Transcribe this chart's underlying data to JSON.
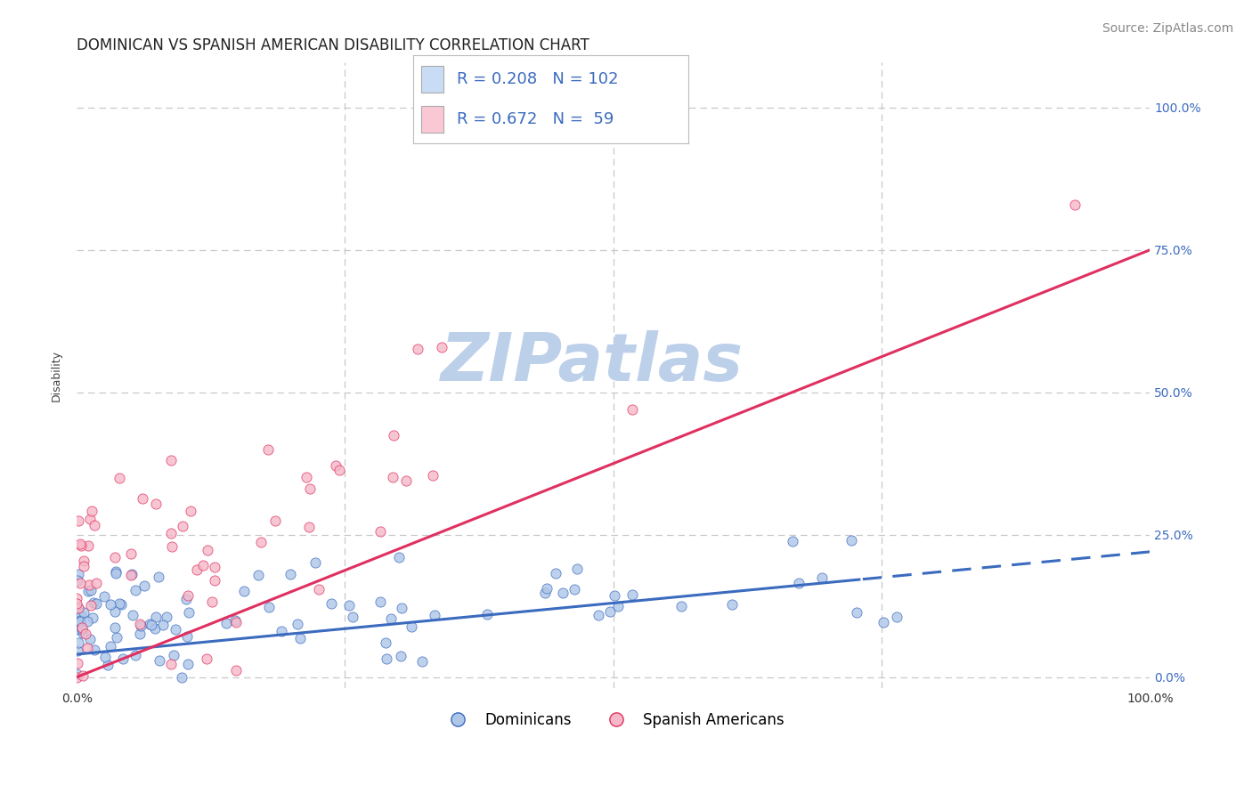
{
  "title": "DOMINICAN VS SPANISH AMERICAN DISABILITY CORRELATION CHART",
  "source": "Source: ZipAtlas.com",
  "ylabel": "Disability",
  "xlim": [
    0.0,
    1.0
  ],
  "ylim": [
    -0.02,
    1.08
  ],
  "xtick_labels": [
    "0.0%",
    "100.0%"
  ],
  "xtick_positions": [
    0.0,
    1.0
  ],
  "ytick_labels": [
    "0.0%",
    "25.0%",
    "50.0%",
    "75.0%",
    "100.0%"
  ],
  "ytick_positions": [
    0.0,
    0.25,
    0.5,
    0.75,
    1.0
  ],
  "dominican_R": 0.208,
  "dominican_N": 102,
  "spanish_R": 0.672,
  "spanish_N": 59,
  "dominican_color": "#aec6e8",
  "spanish_color": "#f5b8c8",
  "dominican_line_color": "#3b6bbf",
  "spanish_line_color": "#e03060",
  "legend_box_color_dom": "#c9dcf5",
  "legend_box_color_spa": "#fac8d5",
  "background_color": "#ffffff",
  "grid_color": "#c8c8c8",
  "watermark": "ZIPatlas",
  "watermark_color": "#bdd0ea",
  "title_fontsize": 12,
  "axis_label_fontsize": 9,
  "tick_fontsize": 10,
  "source_fontsize": 10
}
